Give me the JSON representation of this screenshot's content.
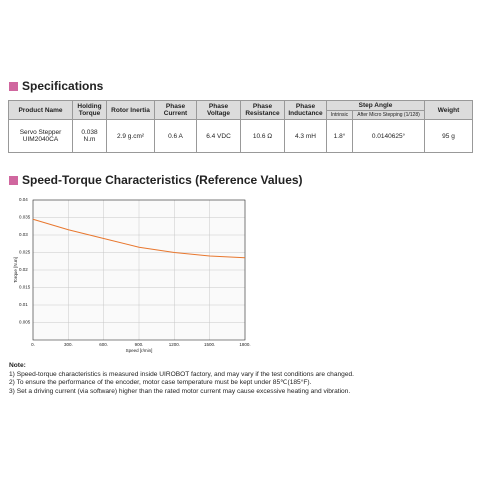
{
  "specifications": {
    "title": "Specifications",
    "header": [
      "Product Name",
      "Holding Torque",
      "Rotor Inertia",
      "Phase Current",
      "Phase Voltage",
      "Phase Resistance",
      "Phase Inductance",
      "Step Angle",
      "Weight"
    ],
    "subheader": [
      "Intrinsic",
      "After Micro Stepping (1/128)"
    ],
    "rows": [
      [
        "Servo Stepper UIM2040CA",
        "0.038 N.m",
        "2.9 g.cm²",
        "0.6 A",
        "6.4 VDC",
        "10.6 Ω",
        "4.3 mH",
        "1.8°",
        "0.0140625°",
        "95 g"
      ]
    ]
  },
  "chart_data": {
    "type": "line",
    "title": "Speed-Torque Characteristics (Reference Values)",
    "x_label": "Speed [r/min]",
    "y_label": "Torque [N.m]",
    "x": [
      0,
      300,
      600,
      900,
      1200,
      1500,
      1800
    ],
    "series": [
      {
        "name": "Torque",
        "color": "#e8772e",
        "values": [
          0.0345,
          0.0315,
          0.029,
          0.0265,
          0.025,
          0.024,
          0.0235
        ]
      }
    ],
    "xlim": [
      0,
      1800
    ],
    "xticks": [
      {
        "value": 0,
        "label": "0."
      },
      {
        "value": 300,
        "label": "300."
      },
      {
        "value": 600,
        "label": "600."
      },
      {
        "value": 900,
        "label": "900."
      },
      {
        "value": 1200,
        "label": "1200."
      },
      {
        "value": 1500,
        "label": "1500."
      },
      {
        "value": 1800,
        "label": "1800."
      }
    ],
    "ylim": [
      0,
      0.04
    ],
    "yticks": [
      0.005,
      0.01,
      0.015,
      0.02,
      0.025,
      0.03,
      0.035,
      0.04
    ],
    "grid": true
  },
  "notes": {
    "title": "Note:",
    "items": [
      "1) Speed-torque characteristics is measured inside UIROBOT factory, and may vary if the test conditions are changed.",
      "2) To ensure the performance of the encoder, motor case temperature must be kept under 85℃(185°F).",
      "3) Set a driving current (via software) higher than the rated motor current may cause excessive heating and vibration."
    ]
  }
}
